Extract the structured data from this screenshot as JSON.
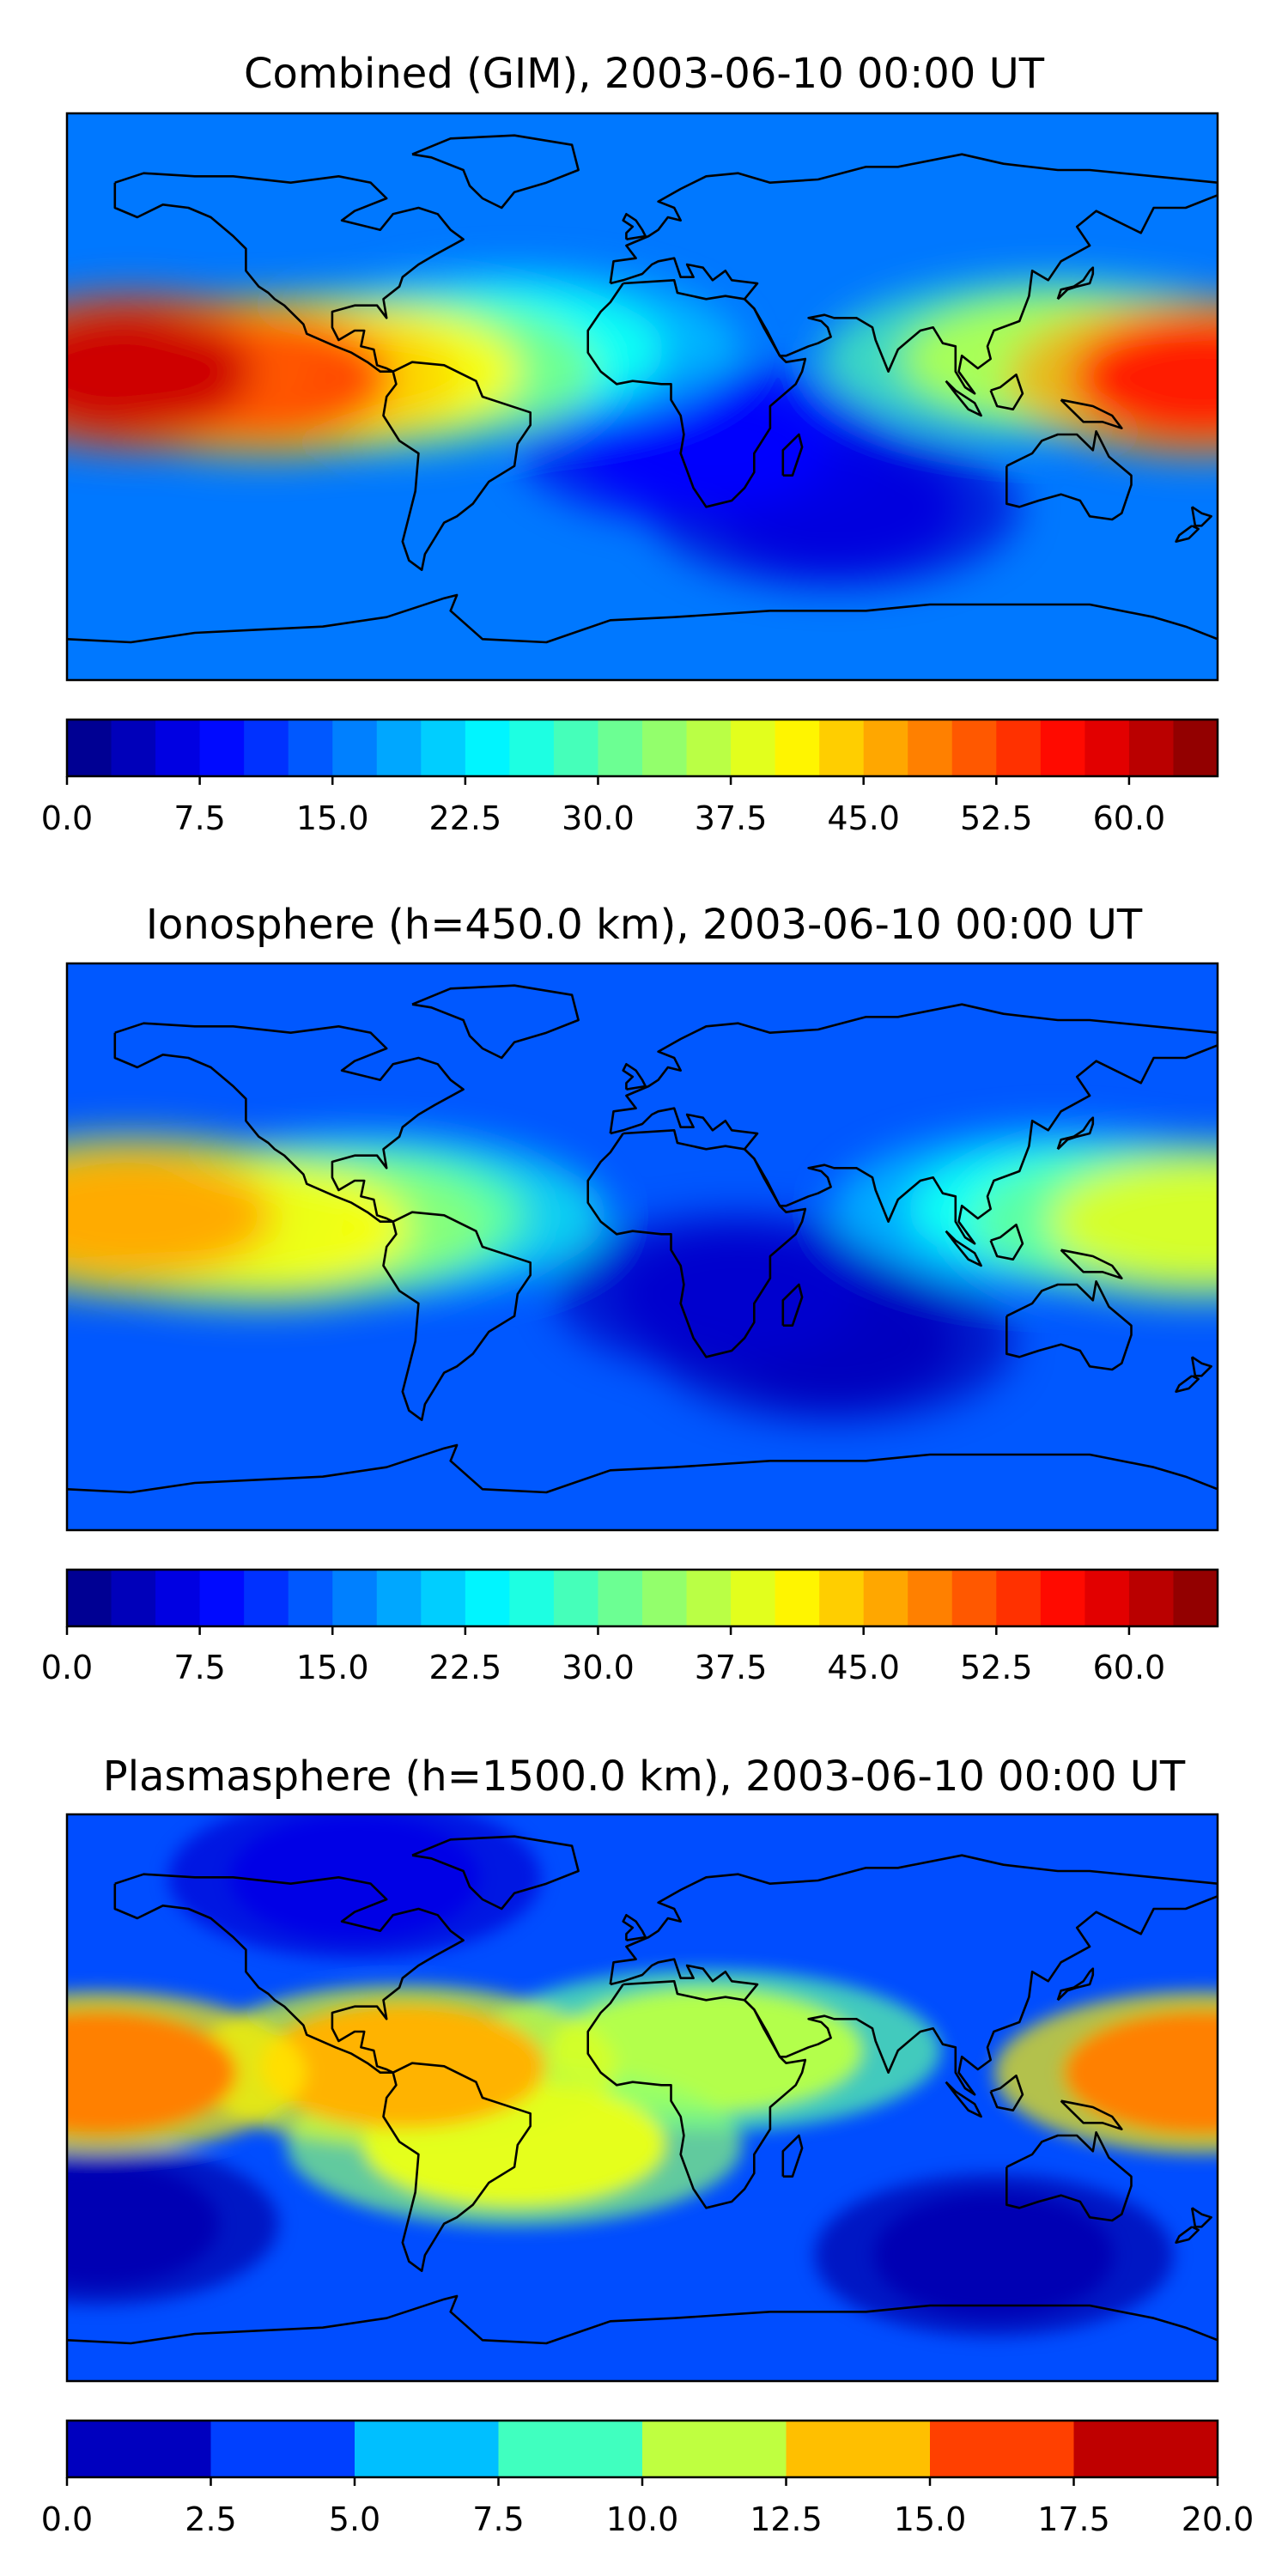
{
  "chart_data": [
    {
      "type": "heatmap",
      "title": "Combined (GIM), 2003-06-10 00:00 UT",
      "xlabel": "",
      "ylabel": "",
      "colorbar": {
        "range": [
          0.0,
          65.0
        ],
        "levels": 26,
        "tick_labels": [
          "0.0",
          "7.5",
          "15.0",
          "22.5",
          "30.0",
          "37.5",
          "45.0",
          "52.5",
          "60.0"
        ]
      },
      "features": [
        {
          "lon": -160,
          "lat": 8,
          "value": 60
        },
        {
          "lon": -120,
          "lat": 6,
          "value": 52
        },
        {
          "lon": -85,
          "lat": 8,
          "value": 40
        },
        {
          "lon": 175,
          "lat": 6,
          "value": 55
        },
        {
          "lon": 130,
          "lat": 12,
          "value": 35
        },
        {
          "lon": -40,
          "lat": 15,
          "value": 25
        },
        {
          "lon": 20,
          "lat": -15,
          "value": 8
        },
        {
          "lon": 60,
          "lat": -35,
          "value": 6
        }
      ]
    },
    {
      "type": "heatmap",
      "title": "Ionosphere  (h=450.0 km), 2003-06-10 00:00 UT",
      "xlabel": "",
      "ylabel": "",
      "colorbar": {
        "range": [
          0.0,
          65.0
        ],
        "levels": 26,
        "tick_labels": [
          "0.0",
          "7.5",
          "15.0",
          "22.5",
          "30.0",
          "37.5",
          "45.0",
          "52.5",
          "60.0"
        ]
      },
      "features": [
        {
          "lon": -160,
          "lat": 10,
          "value": 46
        },
        {
          "lon": -120,
          "lat": 6,
          "value": 40
        },
        {
          "lon": -85,
          "lat": 10,
          "value": 30
        },
        {
          "lon": 175,
          "lat": 8,
          "value": 38
        },
        {
          "lon": 130,
          "lat": 12,
          "value": 25
        },
        {
          "lon": 30,
          "lat": -15,
          "value": 5
        },
        {
          "lon": 60,
          "lat": -30,
          "value": 4
        }
      ]
    },
    {
      "type": "heatmap",
      "title": "Plasmasphere (h=1500.0 km), 2003-06-10 00:00 UT",
      "xlabel": "",
      "ylabel": "",
      "colorbar": {
        "range": [
          0.0,
          20.0
        ],
        "levels": 8,
        "tick_labels": [
          "0.0",
          "2.5",
          "5.0",
          "7.5",
          "10.0",
          "12.5",
          "15.0",
          "17.5",
          "20.0"
        ]
      },
      "features": [
        {
          "lon": -170,
          "lat": 8,
          "value": 15
        },
        {
          "lon": -75,
          "lat": 10,
          "value": 14
        },
        {
          "lon": -40,
          "lat": -15,
          "value": 12
        },
        {
          "lon": 20,
          "lat": 15,
          "value": 11
        },
        {
          "lon": 175,
          "lat": 8,
          "value": 15
        },
        {
          "lon": 110,
          "lat": -50,
          "value": 1
        },
        {
          "lon": -170,
          "lat": -40,
          "value": 1
        },
        {
          "lon": -90,
          "lat": 70,
          "value": 2
        }
      ]
    }
  ]
}
